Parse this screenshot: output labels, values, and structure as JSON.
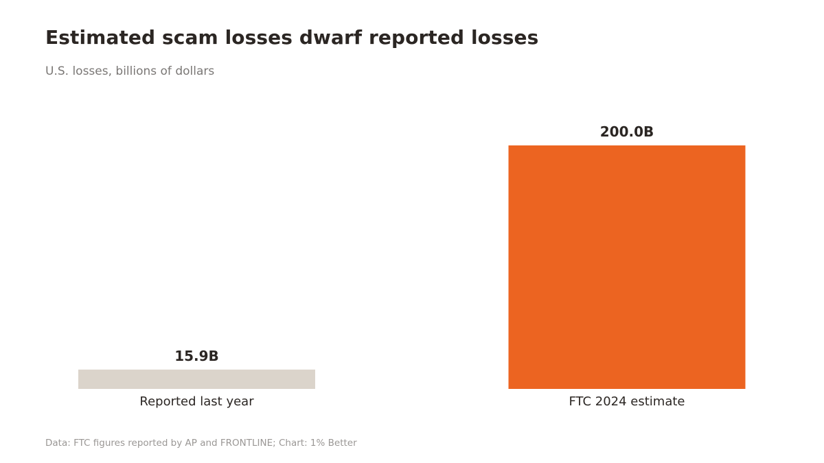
{
  "title": "Estimated scam losses dwarf reported losses",
  "subtitle": "U.S. losses, billions of dollars",
  "source": "Data: FTC figures reported by AP and FRONTLINE; Chart: 1% Better",
  "chart_data": {
    "type": "bar",
    "categories": [
      "Reported last year",
      "FTC 2024 estimate"
    ],
    "values": [
      15.9,
      200.0
    ],
    "value_labels": [
      "15.9B",
      "200.0B"
    ],
    "colors": [
      "#dbd4cb",
      "#ec6421"
    ],
    "ylim": [
      0,
      200
    ],
    "grid": false,
    "legend": "none",
    "xlabel": "",
    "ylabel": ""
  }
}
